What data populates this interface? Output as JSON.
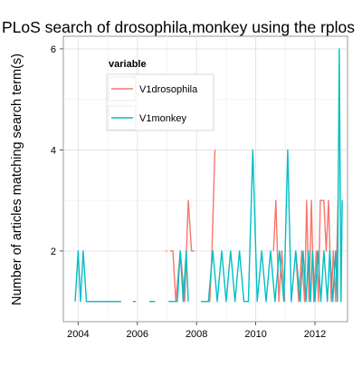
{
  "chart_data": {
    "type": "line",
    "title": "PLoS search of drosophila,monkey using the rplos",
    "xlabel": "",
    "ylabel": "Number of articles matching search term(s)",
    "xlim": [
      2003.5,
      2013.1
    ],
    "ylim": [
      0.6,
      6.25
    ],
    "x_ticks": [
      2004,
      2006,
      2008,
      2010,
      2012
    ],
    "x_tick_labels": [
      "2004",
      "2006",
      "2008",
      "2010",
      "2012"
    ],
    "y_ticks": [
      2,
      4,
      6
    ],
    "y_tick_labels": [
      "2",
      "4",
      "6"
    ],
    "grid": true,
    "background": "#ffffff",
    "legend": {
      "title": "variable",
      "position": "top-left"
    },
    "series": [
      {
        "name": "V1drosophila",
        "color": "#F8766D",
        "segments": [
          [
            [
              2004.25,
              1
            ],
            [
              2005.45,
              1
            ]
          ],
          [
            [
              2006.95,
              2
            ],
            [
              2007.0,
              2
            ]
          ],
          [
            [
              2007.1,
              2
            ],
            [
              2007.2,
              2
            ],
            [
              2007.3,
              1
            ],
            [
              2007.45,
              2
            ],
            [
              2007.6,
              1
            ],
            [
              2007.72,
              3
            ],
            [
              2007.83,
              2
            ],
            [
              2007.92,
              2
            ]
          ],
          [
            [
              2008.3,
              1
            ],
            [
              2008.45,
              1
            ],
            [
              2008.52,
              2
            ],
            [
              2008.62,
              4
            ]
          ],
          [
            [
              2010.6,
              2
            ],
            [
              2010.68,
              3
            ],
            [
              2010.78,
              1
            ],
            [
              2010.88,
              2
            ],
            [
              2010.98,
              1
            ]
          ],
          [
            [
              2011.35,
              2
            ],
            [
              2011.45,
              1
            ],
            [
              2011.55,
              2
            ],
            [
              2011.65,
              1
            ],
            [
              2011.72,
              3
            ],
            [
              2011.8,
              1
            ],
            [
              2011.88,
              3
            ],
            [
              2011.96,
              1
            ],
            [
              2012.05,
              2
            ],
            [
              2012.12,
              1
            ],
            [
              2012.18,
              3
            ],
            [
              2012.3,
              3
            ],
            [
              2012.38,
              2
            ],
            [
              2012.46,
              3
            ],
            [
              2012.55,
              1
            ],
            [
              2012.62,
              2
            ],
            [
              2012.7,
              1
            ],
            [
              2012.78,
              3
            ]
          ]
        ]
      },
      {
        "name": "V1monkey",
        "color": "#00BFC4",
        "segments": [
          [
            [
              2003.9,
              1
            ],
            [
              2004.0,
              2
            ],
            [
              2004.08,
              1
            ],
            [
              2004.17,
              2
            ],
            [
              2004.28,
              1
            ],
            [
              2005.45,
              1
            ]
          ],
          [
            [
              2005.85,
              1
            ],
            [
              2005.95,
              1
            ]
          ],
          [
            [
              2006.4,
              1
            ],
            [
              2006.6,
              1
            ]
          ],
          [
            [
              2007.05,
              1
            ],
            [
              2007.35,
              1
            ],
            [
              2007.45,
              2
            ],
            [
              2007.55,
              1
            ],
            [
              2007.65,
              2
            ],
            [
              2007.72,
              1
            ]
          ],
          [
            [
              2008.15,
              1
            ],
            [
              2008.4,
              1
            ],
            [
              2008.55,
              2
            ],
            [
              2008.7,
              1
            ],
            [
              2008.85,
              2
            ],
            [
              2009.0,
              1
            ],
            [
              2009.15,
              2
            ],
            [
              2009.3,
              1
            ],
            [
              2009.45,
              2
            ],
            [
              2009.6,
              1
            ],
            [
              2009.75,
              1
            ],
            [
              2009.9,
              4
            ],
            [
              2010.05,
              1
            ],
            [
              2010.2,
              2
            ],
            [
              2010.35,
              1
            ],
            [
              2010.5,
              2
            ],
            [
              2010.65,
              1
            ],
            [
              2010.8,
              2
            ],
            [
              2010.95,
              1
            ],
            [
              2011.08,
              4
            ],
            [
              2011.2,
              1
            ],
            [
              2011.35,
              2
            ],
            [
              2011.5,
              1
            ],
            [
              2011.6,
              2
            ],
            [
              2011.7,
              1
            ],
            [
              2011.78,
              2
            ],
            [
              2011.85,
              1
            ],
            [
              2011.92,
              2
            ],
            [
              2012.0,
              1
            ],
            [
              2012.1,
              2
            ],
            [
              2012.2,
              1
            ],
            [
              2012.3,
              2
            ],
            [
              2012.42,
              1
            ],
            [
              2012.5,
              2
            ],
            [
              2012.6,
              1
            ],
            [
              2012.7,
              2
            ],
            [
              2012.76,
              1
            ],
            [
              2012.82,
              6
            ],
            [
              2012.88,
              1
            ],
            [
              2012.92,
              3
            ]
          ]
        ]
      }
    ]
  }
}
